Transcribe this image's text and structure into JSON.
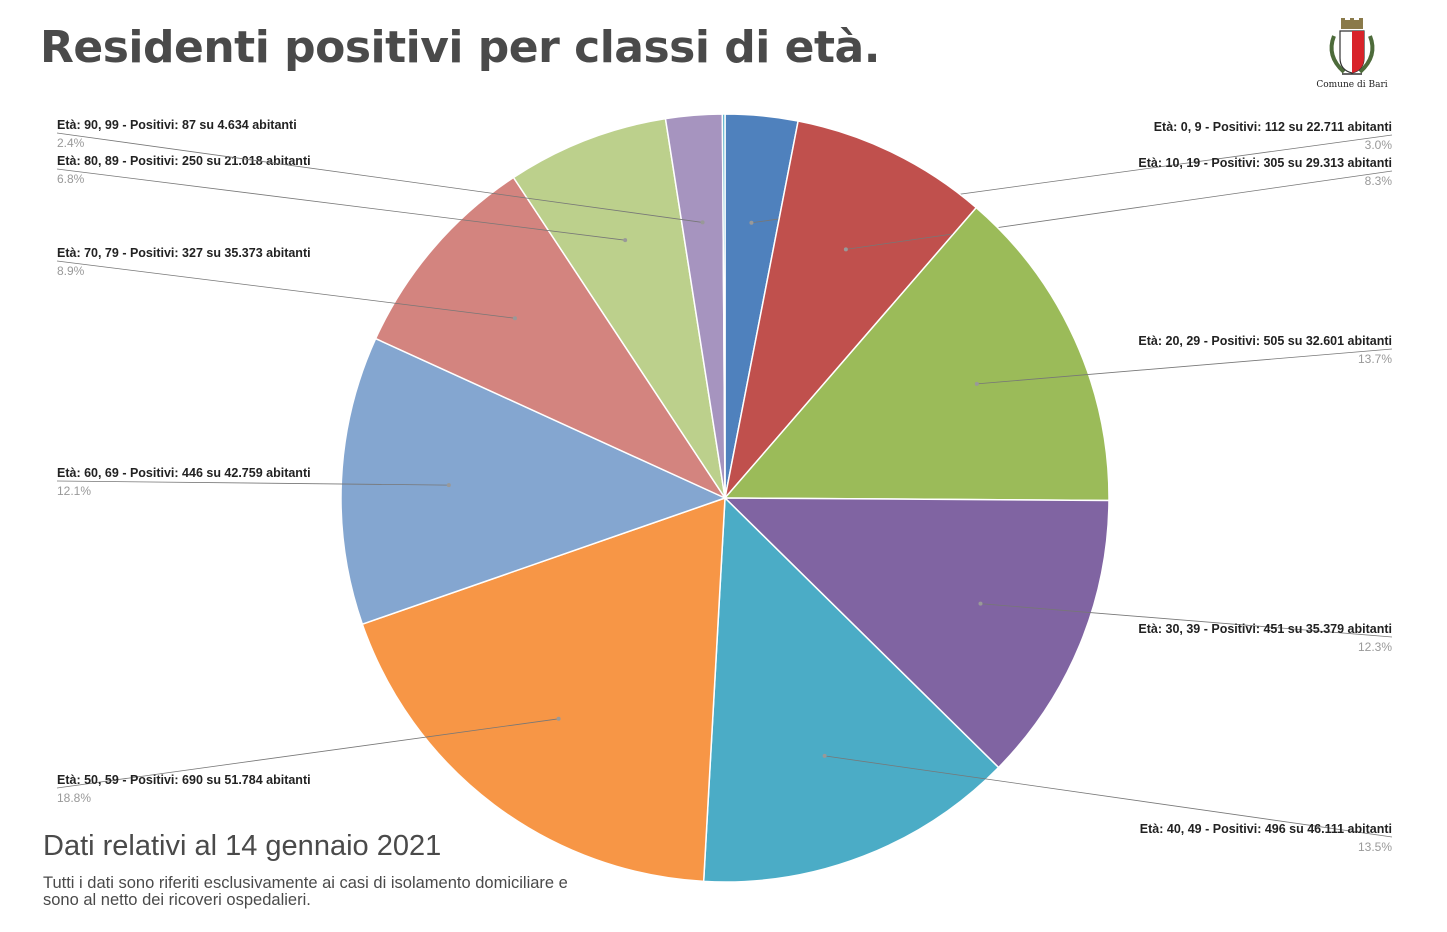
{
  "header": {
    "title": "Residenti positivi per classi di età."
  },
  "logo": {
    "icon": "coat-of-arms-icon",
    "text": "Comune di Bari"
  },
  "footer": {
    "date": "Dati relativi al 14 gennaio 2021",
    "note": "Tutti i dati sono riferiti esclusivamente ai casi di isolamento domiciliare e sono al netto dei ricoveri ospedalieri."
  },
  "chart_data": {
    "type": "pie",
    "title": "Residenti positivi per classi di età.",
    "slices": [
      {
        "label": "Età: 0, 9 - Positivi: 112 su 22.711 abitanti",
        "value": 112,
        "pct": "3.0%",
        "color": "#4f81bd"
      },
      {
        "label": "Età: 10, 19 - Positivi: 305 su 29.313 abitanti",
        "value": 305,
        "pct": "8.3%",
        "color": "#c0504d"
      },
      {
        "label": "Età: 20, 29 - Positivi: 505 su 32.601 abitanti",
        "value": 505,
        "pct": "13.7%",
        "color": "#9bbb59"
      },
      {
        "label": "Età: 30, 39 - Positivi: 451 su 35.379 abitanti",
        "value": 451,
        "pct": "12.3%",
        "color": "#8064a2"
      },
      {
        "label": "Età: 40, 49 - Positivi: 496 su 46.111 abitanti",
        "value": 496,
        "pct": "13.5%",
        "color": "#4bacc6"
      },
      {
        "label": "Età: 50, 59 - Positivi: 690 su 51.784 abitanti",
        "value": 690,
        "pct": "18.8%",
        "color": "#f79646"
      },
      {
        "label": "Età: 60, 69 - Positivi: 446 su 42.759 abitanti",
        "value": 446,
        "pct": "12.1%",
        "color": "#84a6d0"
      },
      {
        "label": "Età: 70, 79 - Positivi: 327 su 35.373 abitanti",
        "value": 327,
        "pct": "8.9%",
        "color": "#d3847f"
      },
      {
        "label": "Età: 80, 89 - Positivi: 250 su 21.018 abitanti",
        "value": 250,
        "pct": "6.8%",
        "color": "#bcd08c"
      },
      {
        "label": "Età: 90, 99 - Positivi: 87 su 4.634 abitanti",
        "value": 87,
        "pct": "2.4%",
        "color": "#a694bf"
      },
      {
        "label": "",
        "value": 4,
        "pct": "",
        "color": "#4bacc6"
      }
    ]
  }
}
